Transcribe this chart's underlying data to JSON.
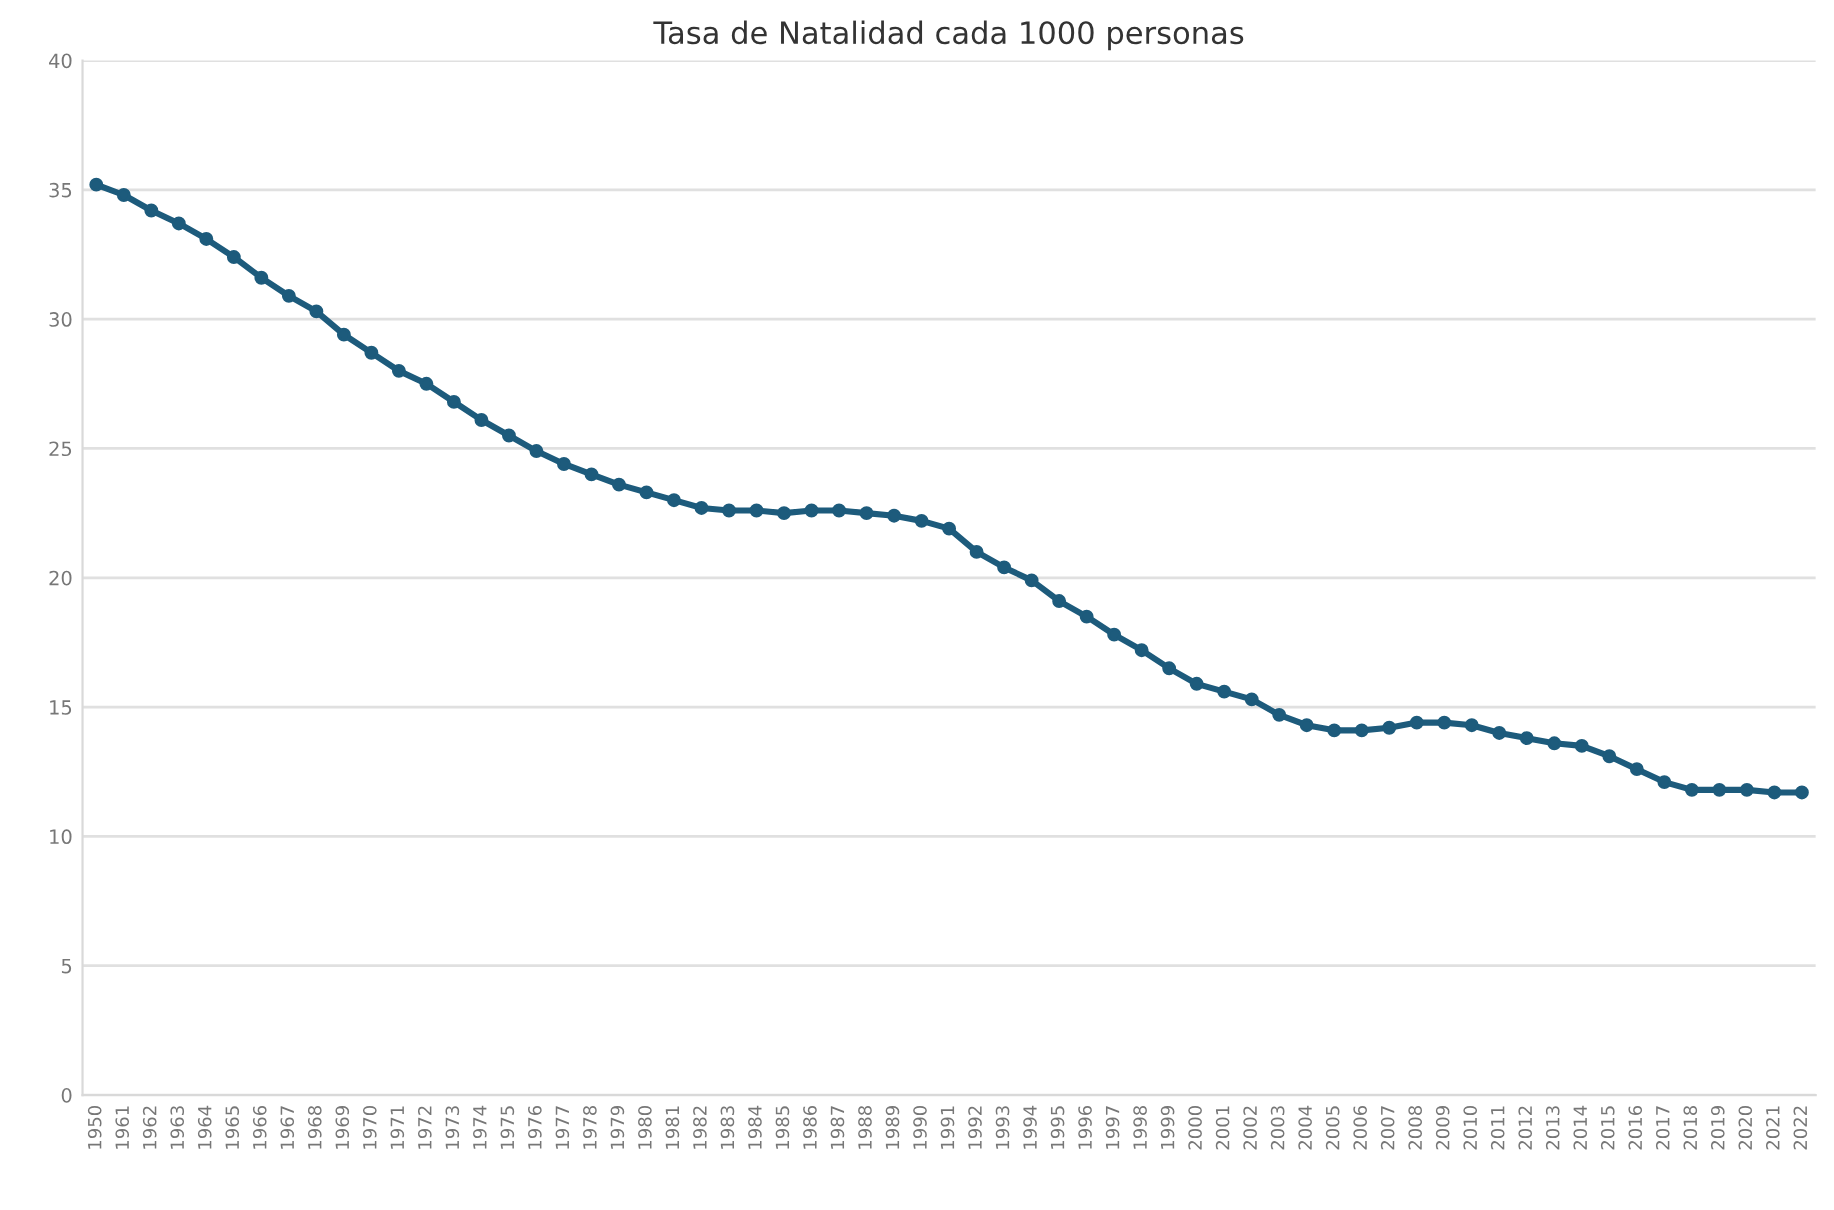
{
  "chart_data": {
    "type": "line",
    "title": "Tasa de Natalidad cada 1000 personas",
    "categories": [
      "1950",
      "1961",
      "1962",
      "1963",
      "1964",
      "1965",
      "1966",
      "1967",
      "1968",
      "1969",
      "1970",
      "1971",
      "1972",
      "1973",
      "1974",
      "1975",
      "1976",
      "1977",
      "1978",
      "1979",
      "1980",
      "1981",
      "1982",
      "1983",
      "1984",
      "1985",
      "1986",
      "1987",
      "1988",
      "1989",
      "1990",
      "1991",
      "1992",
      "1993",
      "1994",
      "1995",
      "1996",
      "1997",
      "1998",
      "1999",
      "2000",
      "2001",
      "2002",
      "2003",
      "2004",
      "2005",
      "2006",
      "2007",
      "2008",
      "2009",
      "2010",
      "2011",
      "2012",
      "2013",
      "2014",
      "2015",
      "2016",
      "2017",
      "2018",
      "2019",
      "2020",
      "2021",
      "2022"
    ],
    "series": [
      {
        "color": "#1d5b7c",
        "values": [
          35.2,
          34.8,
          34.2,
          33.7,
          33.1,
          32.4,
          31.6,
          30.9,
          30.3,
          29.4,
          28.7,
          28.0,
          27.5,
          26.8,
          26.1,
          25.5,
          24.9,
          24.4,
          24.0,
          23.6,
          23.3,
          23.0,
          22.7,
          22.6,
          22.6,
          22.5,
          22.6,
          22.6,
          22.5,
          22.4,
          22.2,
          21.9,
          21.0,
          20.4,
          19.9,
          19.1,
          18.5,
          17.8,
          17.2,
          16.5,
          15.9,
          15.6,
          15.3,
          14.7,
          14.3,
          14.1,
          14.1,
          14.2,
          14.4,
          14.4,
          14.3,
          14.0,
          13.8,
          13.6,
          13.5,
          13.1,
          12.6,
          12.1,
          11.8,
          11.8,
          11.8,
          11.7,
          11.7
        ]
      }
    ],
    "ylim": [
      0,
      40
    ],
    "yticks": [
      0,
      5,
      10,
      15,
      20,
      25,
      30,
      35,
      40
    ],
    "grid": "y",
    "marker": "circle",
    "line_style": "solid"
  }
}
